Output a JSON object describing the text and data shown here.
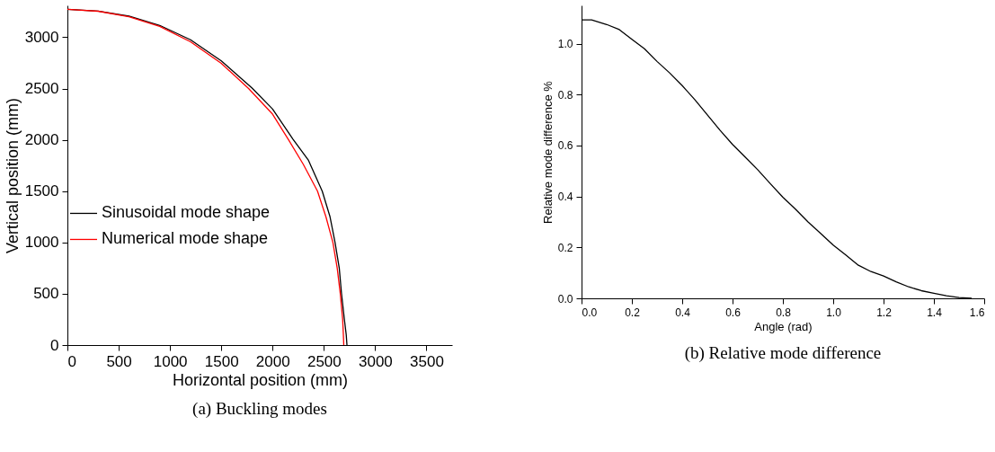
{
  "chart_data": [
    {
      "type": "line",
      "xlabel": "Horizontal position (mm)",
      "ylabel": "Vertical position (mm)",
      "annotations": [
        "(a) Buckling modes"
      ],
      "legend": "left",
      "xlim": [
        0,
        3750
      ],
      "ylim": [
        0,
        3310
      ],
      "xticks": [
        0,
        500,
        1000,
        1500,
        2000,
        2500,
        3000,
        3500
      ],
      "yticks": [
        0,
        500,
        1000,
        1500,
        2000,
        2500,
        3000
      ],
      "series": [
        {
          "name": "Sinusoidal mode shape",
          "color": "#000000",
          "x": [
            0,
            300,
            600,
            900,
            1200,
            1500,
            1800,
            2000,
            2200,
            2350,
            2484,
            2560,
            2609,
            2650,
            2672,
            2700,
            2718,
            2725
          ],
          "values": [
            3272,
            3255,
            3205,
            3115,
            2975,
            2770,
            2505,
            2300,
            2005,
            1800,
            1500,
            1250,
            1000,
            750,
            500,
            250,
            100,
            0
          ]
        },
        {
          "name": "Numerical mode shape",
          "color": "#ff0000",
          "x": [
            0,
            300,
            600,
            900,
            1200,
            1500,
            1766,
            2000,
            2156,
            2300,
            2438,
            2520,
            2588,
            2630,
            2660,
            2683,
            2690,
            2694
          ],
          "values": [
            3272,
            3253,
            3200,
            3105,
            2955,
            2745,
            2500,
            2250,
            2000,
            1760,
            1500,
            1250,
            1000,
            750,
            500,
            250,
            100,
            0
          ]
        }
      ]
    },
    {
      "type": "line",
      "xlabel": "Angle (rad)",
      "ylabel": "Relative mode difference %",
      "annotations": [
        "(b) Relative mode difference"
      ],
      "xlim": [
        0,
        1.6
      ],
      "ylim": [
        0,
        1.15
      ],
      "xticks": [
        {
          "value": 0,
          "label": "0.0"
        },
        {
          "value": 0.2,
          "label": "0.2"
        },
        {
          "value": 0.4,
          "label": "0.4"
        },
        {
          "value": 0.6,
          "label": "0.6"
        },
        {
          "value": 0.8,
          "label": "0.8"
        },
        {
          "value": 1.0,
          "label": "1.0"
        },
        {
          "value": 1.2,
          "label": "1.2"
        },
        {
          "value": 1.4,
          "label": "1.4"
        },
        {
          "value": 1.6,
          "label": "1.6"
        }
      ],
      "yticks": [
        {
          "value": 0,
          "label": "0.0"
        },
        {
          "value": 0.2,
          "label": "0.2"
        },
        {
          "value": 0.4,
          "label": "0.4"
        },
        {
          "value": 0.6,
          "label": "0.6"
        },
        {
          "value": 0.8,
          "label": "0.8"
        },
        {
          "value": 1.0,
          "label": "1.0"
        }
      ],
      "series": [
        {
          "color": "#000000",
          "x": [
            0,
            0.04,
            0.1,
            0.15,
            0.2,
            0.25,
            0.3,
            0.35,
            0.4,
            0.45,
            0.5,
            0.55,
            0.6,
            0.65,
            0.7,
            0.75,
            0.8,
            0.85,
            0.9,
            0.95,
            1.0,
            1.05,
            1.1,
            1.15,
            1.2,
            1.25,
            1.3,
            1.35,
            1.4,
            1.45,
            1.5,
            1.55
          ],
          "values": [
            1.093,
            1.093,
            1.075,
            1.055,
            1.017,
            0.98,
            0.93,
            0.885,
            0.835,
            0.78,
            0.72,
            0.66,
            0.604,
            0.555,
            0.505,
            0.45,
            0.397,
            0.35,
            0.3,
            0.255,
            0.209,
            0.17,
            0.13,
            0.105,
            0.088,
            0.065,
            0.045,
            0.03,
            0.02,
            0.01,
            0.003,
            0
          ]
        }
      ]
    }
  ]
}
